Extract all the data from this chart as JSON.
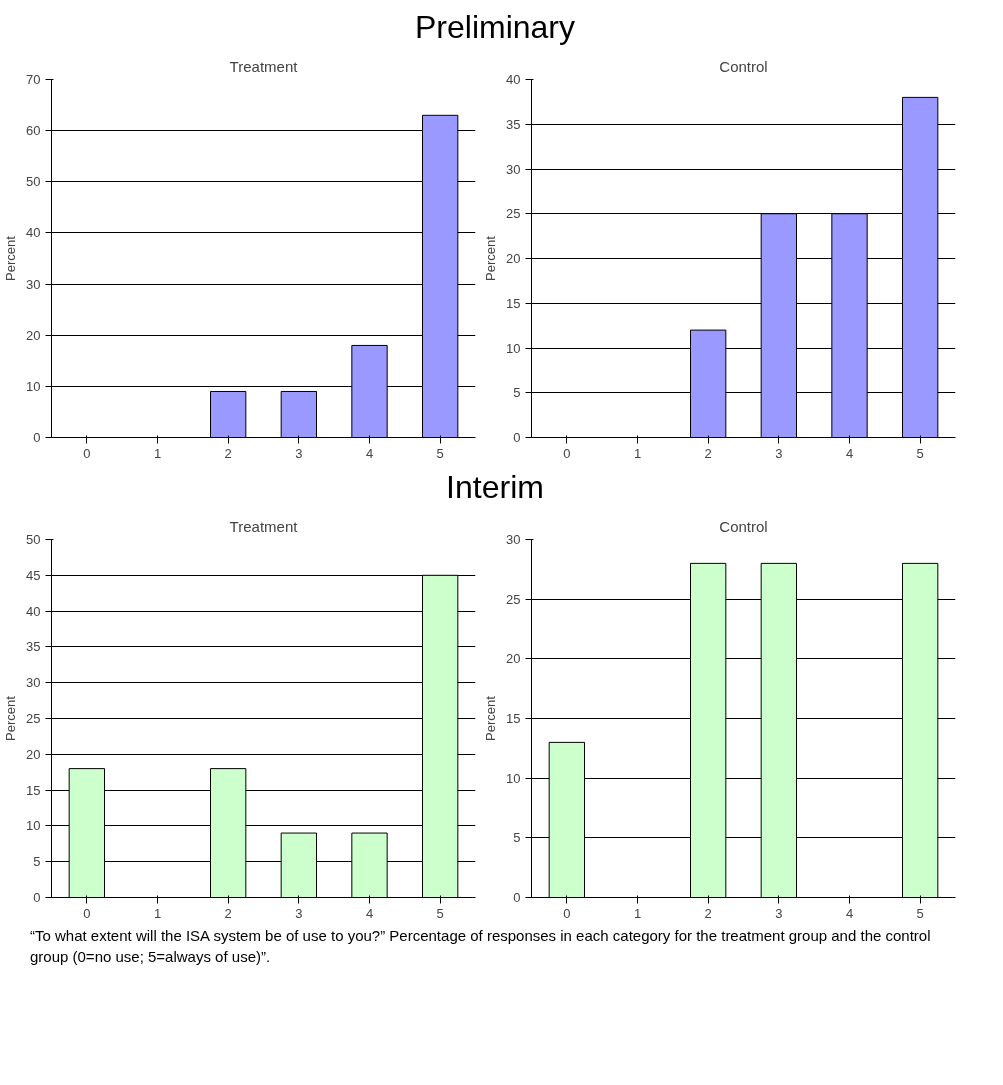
{
  "chart_data": [
    {
      "type": "bar",
      "title": "Treatment",
      "ylabel": "Percent",
      "categories": [
        "0",
        "1",
        "2",
        "3",
        "4",
        "5"
      ],
      "values": [
        0,
        0,
        9,
        9,
        18,
        63
      ],
      "color": "#9999ff",
      "ylim": [
        0,
        70
      ],
      "yticks": [
        0,
        10,
        20,
        30,
        40,
        50,
        60,
        70
      ],
      "grid": "y",
      "annotations": [
        "Preliminary"
      ]
    },
    {
      "type": "bar",
      "title": "Control",
      "ylabel": "Percent",
      "categories": [
        "0",
        "1",
        "2",
        "3",
        "4",
        "5"
      ],
      "values": [
        0,
        0,
        12,
        25,
        25,
        38
      ],
      "color": "#9999ff",
      "ylim": [
        0,
        40
      ],
      "yticks": [
        0,
        5,
        10,
        15,
        20,
        25,
        30,
        35,
        40
      ],
      "grid": "y"
    },
    {
      "type": "bar",
      "title": "Treatment",
      "ylabel": "Percent",
      "categories": [
        "0",
        "1",
        "2",
        "3",
        "4",
        "5"
      ],
      "values": [
        18,
        0,
        18,
        9,
        9,
        45
      ],
      "color": "#ccffcc",
      "ylim": [
        0,
        50
      ],
      "yticks": [
        0,
        5,
        10,
        15,
        20,
        25,
        30,
        35,
        40,
        45,
        50
      ],
      "grid": "y",
      "annotations": [
        "Interim"
      ]
    },
    {
      "type": "bar",
      "title": "Control",
      "ylabel": "Percent",
      "categories": [
        "0",
        "1",
        "2",
        "3",
        "4",
        "5"
      ],
      "values": [
        13,
        0,
        28,
        28,
        0,
        28
      ],
      "color": "#ccffcc",
      "ylim": [
        0,
        30
      ],
      "yticks": [
        0,
        5,
        10,
        15,
        20,
        25,
        30
      ],
      "grid": "y",
      "annotations": [
        "“To what extent will the ISA system be of use to you?” Percentage of responses in each category for the treatment group and the control group (0=no use; 5=always of use)”."
      ]
    }
  ]
}
